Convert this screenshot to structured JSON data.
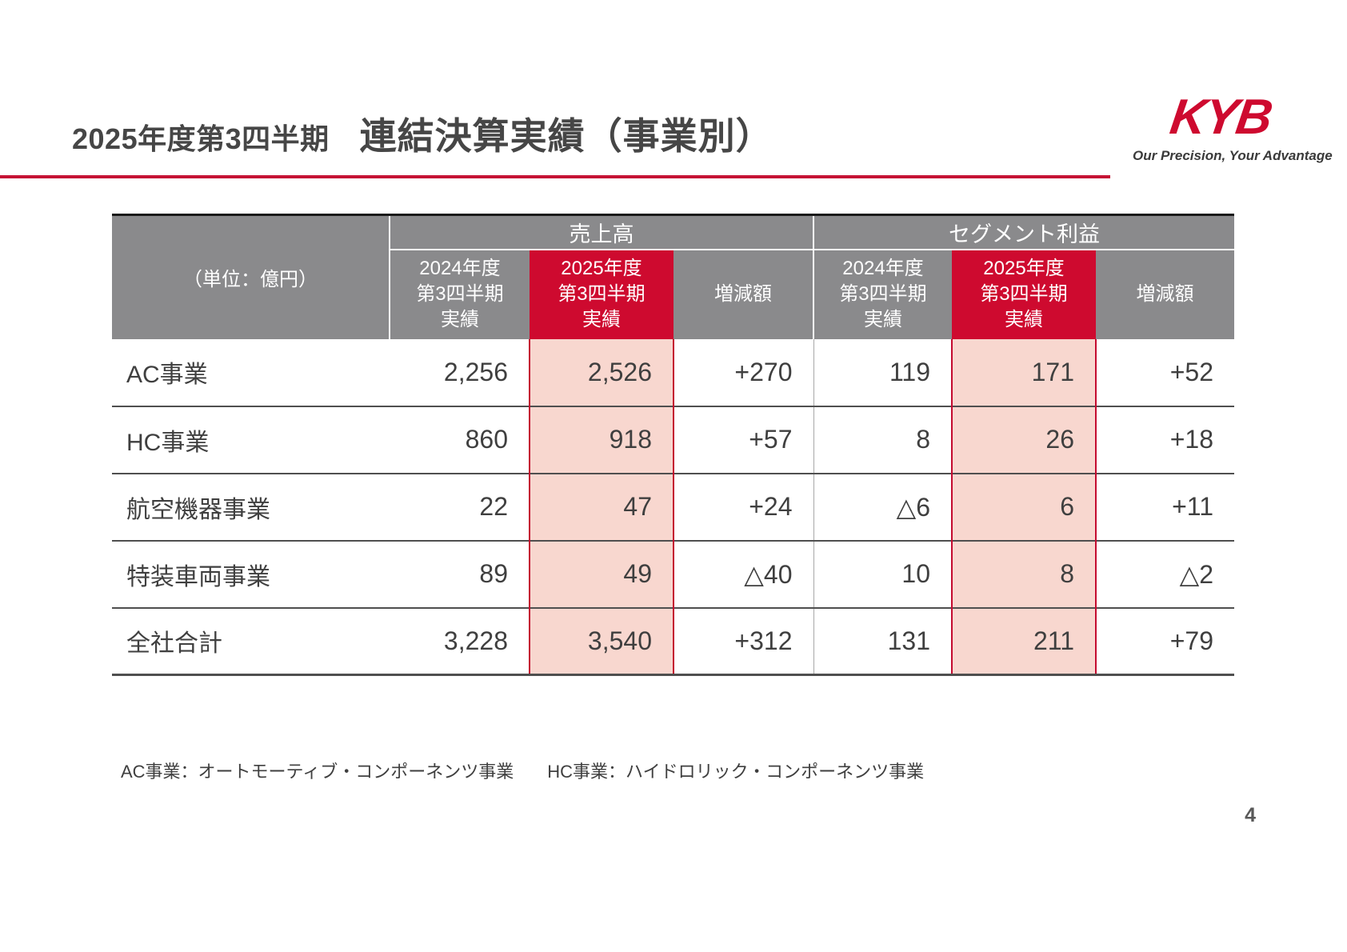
{
  "header": {
    "title_prefix": "2025年度第3四半期",
    "title_main": "連結決算実績（事業別）"
  },
  "logo": {
    "text": "KYB",
    "tagline": "Our Precision, Your Advantage"
  },
  "table": {
    "unit_label": "（単位：億円）",
    "groups": [
      "売上高",
      "セグメント利益"
    ],
    "columns": {
      "fy2024": "2024年度\n第3四半期\n実績",
      "fy2025": "2025年度\n第3四半期\n実績",
      "diff": "増減額"
    },
    "rows": [
      {
        "label": "AC事業",
        "sales_2024": "2,256",
        "sales_2025": "2,526",
        "sales_diff": "+270",
        "profit_2024": "119",
        "profit_2025": "171",
        "profit_diff": "+52"
      },
      {
        "label": "HC事業",
        "sales_2024": "860",
        "sales_2025": "918",
        "sales_diff": "+57",
        "profit_2024": "8",
        "profit_2025": "26",
        "profit_diff": "+18"
      },
      {
        "label": "航空機器事業",
        "sales_2024": "22",
        "sales_2025": "47",
        "sales_diff": "+24",
        "profit_2024": "△6",
        "profit_2025": "6",
        "profit_diff": "+11"
      },
      {
        "label": "特装車両事業",
        "sales_2024": "89",
        "sales_2025": "49",
        "sales_diff": "△40",
        "profit_2024": "10",
        "profit_2025": "8",
        "profit_diff": "△2"
      },
      {
        "label": "全社合計",
        "sales_2024": "3,228",
        "sales_2025": "3,540",
        "sales_diff": "+312",
        "profit_2024": "131",
        "profit_2025": "211",
        "profit_diff": "+79"
      }
    ]
  },
  "footnotes": [
    "AC事業：オートモーティブ・コンポーネンツ事業",
    "HC事業：ハイドロリック・コンポーネンツ事業"
  ],
  "footer": {
    "page_number": "4"
  },
  "colors": {
    "brand_red": "#CE0A2F",
    "header_gray": "#8A8A8C",
    "highlight_pink": "#F8D7CF",
    "highlight_border_red": "#C40B30",
    "title_rule_red": "#C51235",
    "text_dark": "#3F3F3F"
  }
}
